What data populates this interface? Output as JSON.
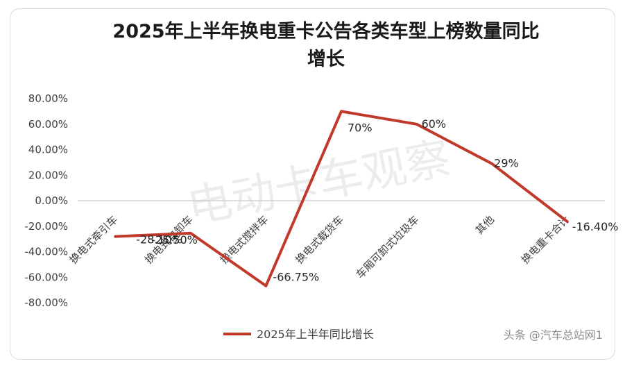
{
  "chart_data": {
    "type": "line",
    "title": "2025年上半年换电重卡公告各类车型上榜数量同比增长",
    "title_lines": [
      "2025年上半年换电重卡公告各类车型上榜数量同比",
      "增长"
    ],
    "categories": [
      "换电式牵引车",
      "换电式自卸车",
      "换电式搅拌车",
      "换电式载货车",
      "车厢可卸式垃圾车",
      "其他",
      "换电重卡合计"
    ],
    "series": [
      {
        "name": "2025年上半年同比增长",
        "values": [
          -28.1,
          -25.5,
          -66.75,
          70,
          60,
          29,
          -16.4
        ],
        "data_labels": [
          "-28.10%",
          "-25.50%",
          "-66.75%",
          "70%",
          "60%",
          "29%",
          "-16.40%"
        ],
        "color": "#c0392b"
      }
    ],
    "yticks": [
      80,
      60,
      40,
      20,
      0,
      -20,
      -40,
      -60,
      -80
    ],
    "ytick_labels": [
      "80.00%",
      "60.00%",
      "40.00%",
      "20.00%",
      "0.00%",
      "-20.00%",
      "-40.00%",
      "-60.00%",
      "-80.00%"
    ],
    "ylim": [
      -80,
      80
    ],
    "legend_position": "bottom",
    "grid": false
  },
  "watermark": "电动卡车观察",
  "source_credit": "头条 @汽车总站网1"
}
